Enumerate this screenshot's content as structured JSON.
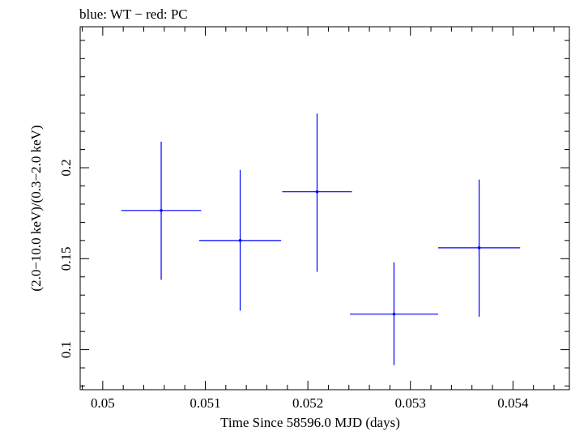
{
  "chart_data": {
    "type": "scatter",
    "title": "blue: WT − red: PC",
    "xlabel": "Time Since 58596.0 MJD (days)",
    "ylabel": "(2.0−10.0 keV)/(0.3−2.0 keV)",
    "xlim": [
      0.04978,
      0.05455
    ],
    "ylim": [
      0.078,
      0.2775
    ],
    "xticks": [
      0.05,
      0.051,
      0.052,
      0.053,
      0.054
    ],
    "xtick_labels": [
      "0.05",
      "0.051",
      "0.052",
      "0.053",
      "0.054"
    ],
    "yticks": [
      0.1,
      0.15,
      0.2
    ],
    "ytick_labels": [
      "0.1",
      "0.15",
      "0.2"
    ],
    "grid": false,
    "series": [
      {
        "name": "WT",
        "color": "#0000ff",
        "points": [
          {
            "x": 0.05057,
            "xerr": 0.00039,
            "y": 0.1765,
            "yerr_low": 0.0381,
            "yerr_high": 0.0378
          },
          {
            "x": 0.05134,
            "xerr": 0.0004,
            "y": 0.16,
            "yerr_low": 0.0386,
            "yerr_high": 0.0388
          },
          {
            "x": 0.05209,
            "xerr": 0.00034,
            "y": 0.1868,
            "yerr_low": 0.044,
            "yerr_high": 0.043
          },
          {
            "x": 0.05284,
            "xerr": 0.00043,
            "y": 0.1195,
            "yerr_low": 0.028,
            "yerr_high": 0.0285
          },
          {
            "x": 0.05367,
            "xerr": 0.0004,
            "y": 0.156,
            "yerr_low": 0.038,
            "yerr_high": 0.0375
          }
        ]
      }
    ]
  }
}
